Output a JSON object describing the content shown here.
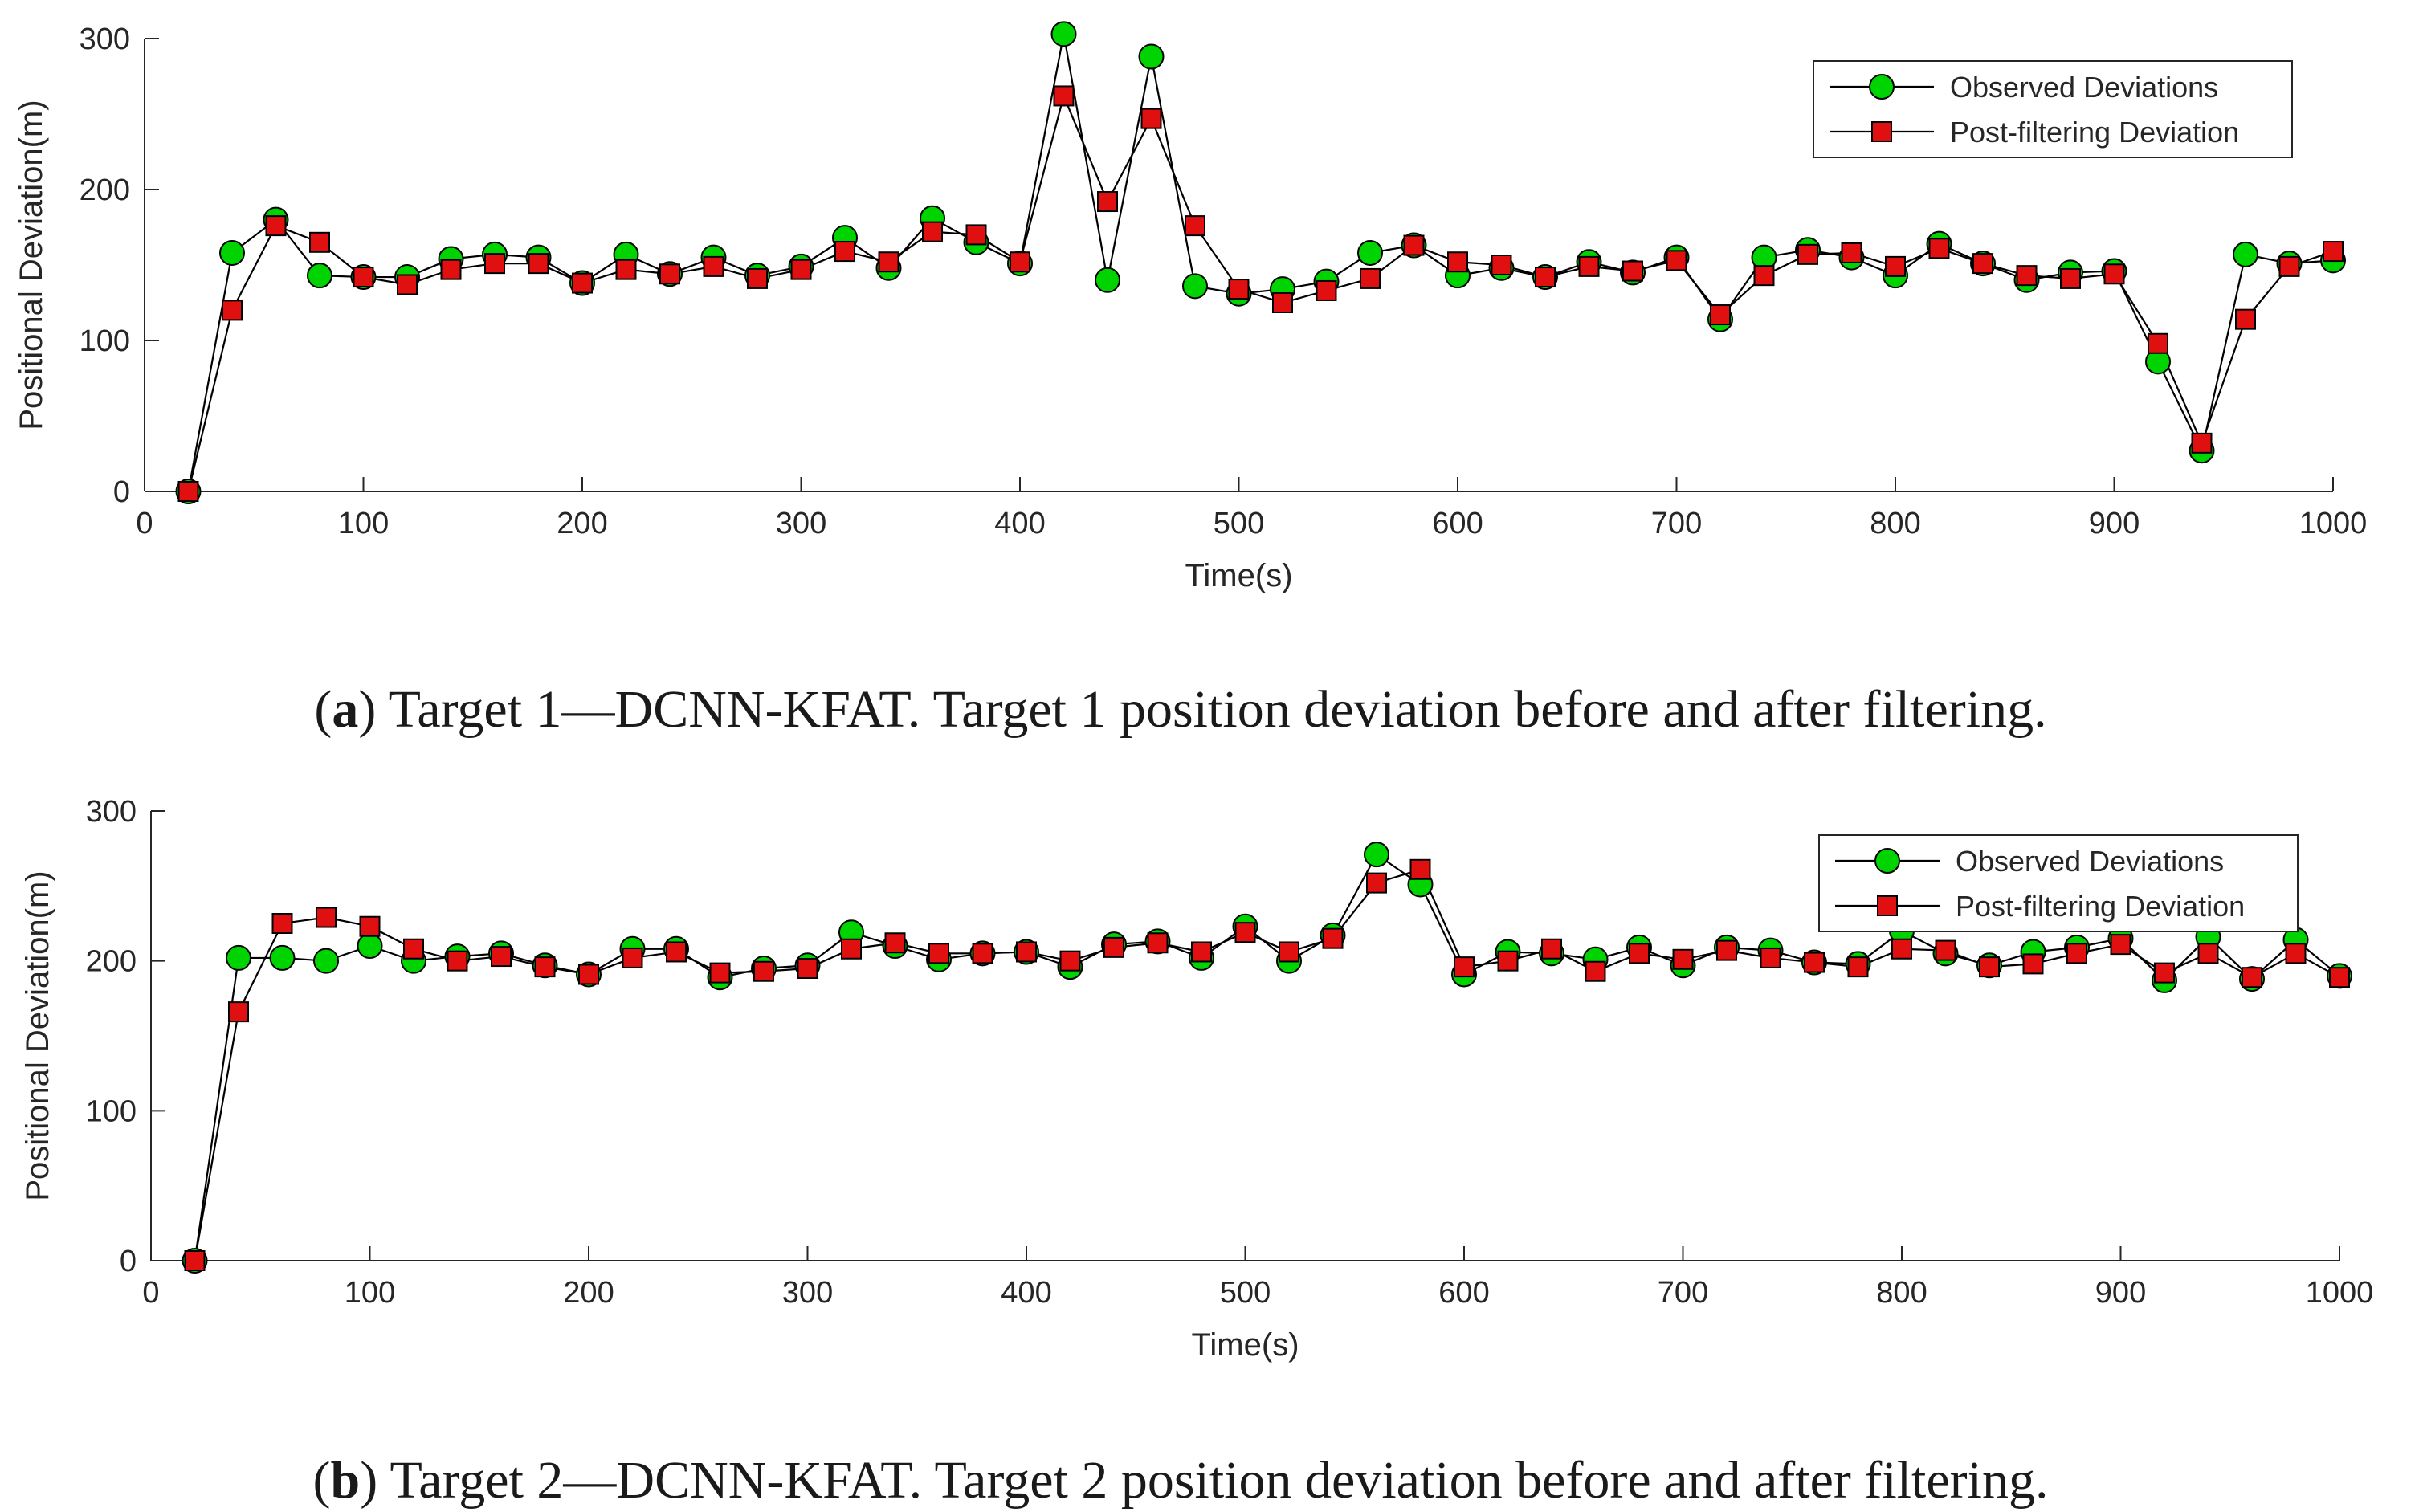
{
  "chart_data": [
    {
      "type": "line",
      "caption_letter": "a",
      "caption_open": "(",
      "caption_rest": ") Target 1—DCNN-KFAT. Target 1 position deviation before and after filtering.",
      "xlabel": "Time(s)",
      "ylabel": "Positional Deviation(m)",
      "xlim": [
        0,
        1000
      ],
      "ylim": [
        0,
        300
      ],
      "xticks": [
        0,
        100,
        200,
        300,
        400,
        500,
        600,
        700,
        800,
        900,
        1000
      ],
      "yticks": [
        0,
        100,
        200,
        300
      ],
      "legend_position": "top-right",
      "x": [
        20,
        40,
        60,
        80,
        100,
        120,
        140,
        160,
        180,
        200,
        220,
        240,
        260,
        280,
        300,
        320,
        340,
        360,
        380,
        400,
        420,
        440,
        460,
        480,
        500,
        520,
        540,
        560,
        580,
        600,
        620,
        640,
        660,
        680,
        700,
        720,
        740,
        760,
        780,
        800,
        820,
        840,
        860,
        880,
        900,
        920,
        940,
        960,
        980,
        1000
      ],
      "series": [
        {
          "name": "Observed Deviations",
          "marker": "circle",
          "color": "#00d400",
          "values": [
            0,
            158,
            180,
            143,
            142,
            142,
            154,
            157,
            155,
            138,
            157,
            144,
            155,
            143,
            149,
            168,
            148,
            181,
            165,
            151,
            303,
            140,
            288,
            136,
            131,
            134,
            139,
            158,
            163,
            143,
            148,
            142,
            152,
            145,
            155,
            114,
            155,
            160,
            155,
            143,
            164,
            151,
            140,
            145,
            146,
            86,
            27,
            157,
            151,
            153
          ]
        },
        {
          "name": "Post-filtering Deviation",
          "marker": "square",
          "color": "#e01010",
          "values": [
            0,
            120,
            176,
            165,
            142,
            137,
            147,
            151,
            151,
            138,
            147,
            144,
            149,
            141,
            147,
            159,
            152,
            172,
            170,
            152,
            262,
            192,
            247,
            176,
            134,
            125,
            133,
            141,
            163,
            152,
            150,
            142,
            149,
            146,
            153,
            117,
            143,
            157,
            158,
            149,
            161,
            151,
            143,
            141,
            144,
            98,
            32,
            114,
            149,
            159
          ]
        }
      ]
    },
    {
      "type": "line",
      "caption_letter": "b",
      "caption_open": "(",
      "caption_rest": ") Target 2—DCNN-KFAT. Target 2 position deviation before and after filtering.",
      "xlabel": "Time(s)",
      "ylabel": "Positional Deviation(m)",
      "xlim": [
        0,
        1000
      ],
      "ylim": [
        0,
        300
      ],
      "xticks": [
        0,
        100,
        200,
        300,
        400,
        500,
        600,
        700,
        800,
        900,
        1000
      ],
      "yticks": [
        0,
        100,
        200,
        300
      ],
      "legend_position": "top-right",
      "x": [
        20,
        40,
        60,
        80,
        100,
        120,
        140,
        160,
        180,
        200,
        220,
        240,
        260,
        280,
        300,
        320,
        340,
        360,
        380,
        400,
        420,
        440,
        460,
        480,
        500,
        520,
        540,
        560,
        580,
        600,
        620,
        640,
        660,
        680,
        700,
        720,
        740,
        760,
        780,
        800,
        820,
        840,
        860,
        880,
        900,
        920,
        940,
        960,
        980,
        1000
      ],
      "series": [
        {
          "name": "Observed Deviations",
          "marker": "circle",
          "color": "#00d400",
          "values": [
            0,
            202,
            202,
            200,
            210,
            200,
            203,
            205,
            197,
            191,
            208,
            208,
            189,
            195,
            197,
            219,
            210,
            201,
            205,
            206,
            196,
            211,
            213,
            202,
            223,
            200,
            217,
            271,
            251,
            191,
            206,
            205,
            201,
            209,
            197,
            209,
            207,
            199,
            198,
            220,
            205,
            197,
            206,
            209,
            215,
            187,
            216,
            188,
            214,
            190
          ]
        },
        {
          "name": "Post-filtering Deviation",
          "marker": "square",
          "color": "#e01010",
          "values": [
            0,
            166,
            225,
            229,
            223,
            208,
            200,
            203,
            196,
            191,
            202,
            206,
            192,
            193,
            195,
            208,
            212,
            205,
            205,
            206,
            200,
            209,
            212,
            206,
            219,
            206,
            215,
            252,
            261,
            196,
            200,
            208,
            193,
            205,
            201,
            207,
            202,
            199,
            196,
            208,
            207,
            196,
            198,
            205,
            211,
            192,
            205,
            189,
            205,
            189
          ]
        }
      ]
    }
  ]
}
